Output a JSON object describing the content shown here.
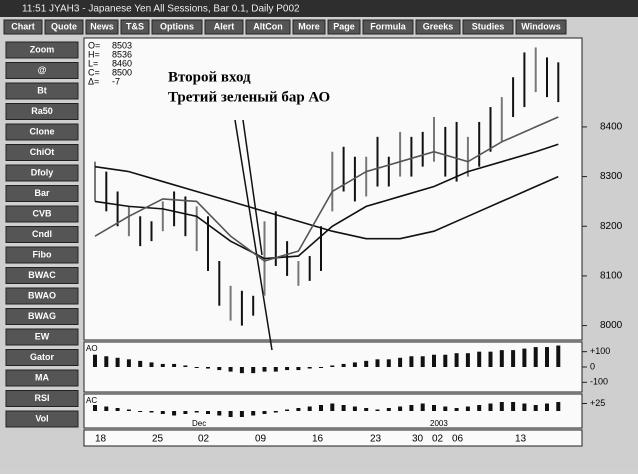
{
  "window": {
    "title": "11:51  JYAH3 - Japanese Yen All Sessions, Bar 0.1, Daily  P002"
  },
  "toolbar": {
    "buttons": [
      "Chart",
      "Quote",
      "News",
      "T&S",
      "Options",
      "Alert",
      "AltCon",
      "More",
      "Page",
      "Formula",
      "Greeks",
      "Studies",
      "Windows"
    ]
  },
  "sidebar": {
    "buttons": [
      "Zoom",
      "@",
      "Bt",
      "Ra50",
      "Clone",
      "ChiOt",
      "Dfoly",
      "Bar",
      "CVB",
      "Cndl",
      "Fibo",
      "BWAC",
      "BWAO",
      "BWAG",
      "EW",
      "Gator",
      "MA",
      "RSI",
      "Vol"
    ]
  },
  "info": [
    {
      "label": "O=",
      "value": "8503"
    },
    {
      "label": "H=",
      "value": "8536"
    },
    {
      "label": "L=",
      "value": "8460"
    },
    {
      "label": "C=",
      "value": "8500"
    },
    {
      "label": "Δ=",
      "value": "-7"
    }
  ],
  "annotations": [
    "Второй вход",
    "Третий зеленый бар АО"
  ],
  "chart": {
    "type": "ohlc",
    "highs": [
      8330,
      8310,
      8270,
      8240,
      8220,
      8210,
      8250,
      8270,
      8260,
      8240,
      8220,
      8130,
      8080,
      8070,
      8060,
      8210,
      8230,
      8170,
      8130,
      8140,
      8200,
      8350,
      8360,
      8340,
      8340,
      8380,
      8340,
      8390,
      8380,
      8390,
      8420,
      8400,
      8410,
      8380,
      8410,
      8440,
      8460,
      8500,
      8550,
      8560,
      8540,
      8530
    ],
    "lows": [
      8250,
      8230,
      8200,
      8180,
      8160,
      8170,
      8190,
      8200,
      8180,
      8150,
      8110,
      8040,
      8010,
      8000,
      8020,
      8060,
      8120,
      8100,
      8080,
      8090,
      8110,
      8230,
      8270,
      8250,
      8260,
      8280,
      8280,
      8300,
      8300,
      8320,
      8330,
      8300,
      8290,
      8300,
      8320,
      8350,
      8370,
      8420,
      8440,
      8470,
      8460,
      8450
    ],
    "ma_x": [
      0,
      3,
      6,
      9,
      12,
      15,
      18,
      21,
      24,
      27,
      30,
      33,
      36,
      39,
      41
    ],
    "ma": [
      {
        "color": "#111",
        "values": [
          8320,
          8310,
          8290,
          8270,
          8250,
          8230,
          8210,
          8190,
          8175,
          8175,
          8190,
          8220,
          8250,
          8280,
          8300
        ]
      },
      {
        "color": "#111",
        "values": [
          8250,
          8240,
          8235,
          8220,
          8170,
          8135,
          8140,
          8200,
          8240,
          8260,
          8280,
          8310,
          8330,
          8350,
          8365
        ]
      },
      {
        "color": "#555",
        "values": [
          8180,
          8220,
          8255,
          8250,
          8180,
          8130,
          8150,
          8270,
          8310,
          8330,
          8350,
          8330,
          8370,
          8400,
          8420
        ]
      }
    ],
    "ylim": [
      7975,
      8575
    ],
    "yticks": [
      8000,
      8100,
      8200,
      8300,
      8400
    ],
    "x_labels": [
      "18",
      "25",
      "02",
      "09",
      "16",
      "23",
      "30",
      "02",
      "06",
      "13"
    ],
    "x_extra": [
      "Dec",
      "2003"
    ],
    "ao": {
      "name": "AO",
      "values": [
        80,
        70,
        60,
        50,
        40,
        30,
        20,
        20,
        10,
        0,
        -10,
        -20,
        -30,
        -40,
        -40,
        -30,
        -30,
        -20,
        -20,
        -10,
        0,
        10,
        20,
        30,
        40,
        50,
        50,
        60,
        70,
        70,
        80,
        80,
        90,
        90,
        100,
        100,
        110,
        110,
        120,
        130,
        130,
        140
      ],
      "ylim": [
        -150,
        150
      ],
      "yticks": [
        {
          "value": 100,
          "label": "+100"
        },
        0,
        -100
      ]
    },
    "ac": {
      "name": "AC",
      "values": [
        20,
        15,
        10,
        5,
        0,
        -5,
        -10,
        -15,
        -10,
        -5,
        -10,
        -15,
        -20,
        -20,
        -15,
        -10,
        -5,
        5,
        10,
        15,
        20,
        25,
        20,
        15,
        10,
        5,
        10,
        15,
        20,
        25,
        20,
        15,
        10,
        15,
        20,
        25,
        30,
        30,
        25,
        20,
        25,
        30
      ],
      "ylim": [
        -50,
        50
      ],
      "yticks": [
        {
          "value": 25,
          "label": "+25"
        }
      ]
    }
  }
}
